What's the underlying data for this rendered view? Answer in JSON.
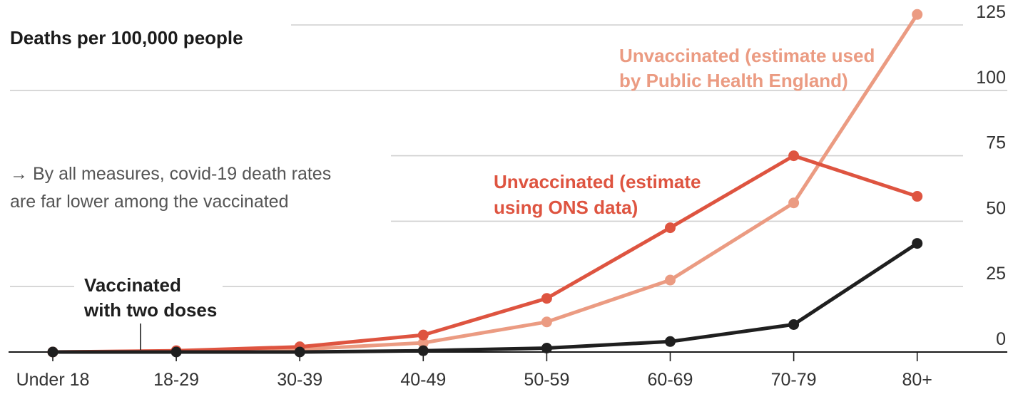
{
  "chart_data": {
    "type": "line",
    "title": "Deaths per 100,000 people",
    "annotation": "→ By all measures, covid-19 death rates are far lower among the vaccinated",
    "annotation_lines": [
      "→ By all measures, covid-19 death rates",
      "are far lower among the vaccinated"
    ],
    "categories": [
      "Under 18",
      "18-29",
      "30-39",
      "40-49",
      "50-59",
      "60-69",
      "70-79",
      "80+"
    ],
    "ylim": [
      0,
      125
    ],
    "yticks": [
      0,
      25,
      50,
      75,
      100,
      125
    ],
    "grid": true,
    "series": [
      {
        "name": "Unvaccinated (estimate used by Public Health England)",
        "label_lines": [
          "Unvaccinated (estimate used",
          "by Public Health England)"
        ],
        "color": "#eb9b82",
        "values": [
          0,
          0.3,
          1,
          3.5,
          11.5,
          27.5,
          57,
          129
        ]
      },
      {
        "name": "Unvaccinated (estimate using ONS data)",
        "label_lines": [
          "Unvaccinated (estimate",
          "using ONS data)"
        ],
        "color": "#de5440",
        "values": [
          0,
          0.5,
          2,
          6.5,
          20.5,
          47.5,
          75,
          59.5
        ]
      },
      {
        "name": "Vaccinated with two doses",
        "label_lines": [
          "Vaccinated",
          "with two doses"
        ],
        "color": "#1f1f1f",
        "values": [
          0,
          0,
          0,
          0.5,
          1.5,
          4,
          10.5,
          41.5
        ]
      }
    ]
  }
}
